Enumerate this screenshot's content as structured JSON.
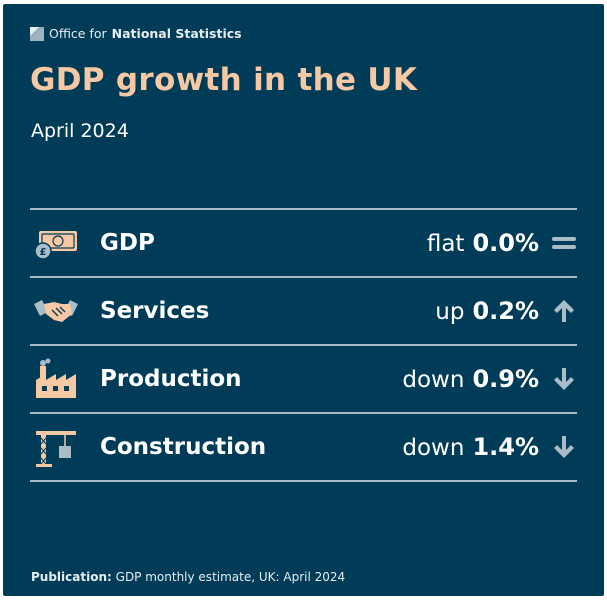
{
  "brand": {
    "prefix": "Office for",
    "name": "National Statistics",
    "logo_icon": "ons-logo-icon"
  },
  "title": "GDP growth in the UK",
  "period": "April 2024",
  "rows": [
    {
      "icon": "banknote-coin-icon",
      "label": "GDP",
      "direction": "flat",
      "value": "0.0%",
      "trend_icon": "equals-icon"
    },
    {
      "icon": "handshake-icon",
      "label": "Services",
      "direction": "up",
      "value": "0.2%",
      "trend_icon": "arrow-up-icon"
    },
    {
      "icon": "factory-icon",
      "label": "Production",
      "direction": "down",
      "value": "0.9%",
      "trend_icon": "arrow-down-icon"
    },
    {
      "icon": "crane-icon",
      "label": "Construction",
      "direction": "down",
      "value": "1.4%",
      "trend_icon": "arrow-down-icon"
    }
  ],
  "footer": {
    "label": "Publication:",
    "text": "GDP monthly estimate, UK: April 2024"
  },
  "colors": {
    "background": "#003c57",
    "title": "#f7c8a4",
    "rule": "#a9bcc7",
    "icon_peach": "#f7c8a4",
    "icon_blue": "#a9bcc7"
  }
}
